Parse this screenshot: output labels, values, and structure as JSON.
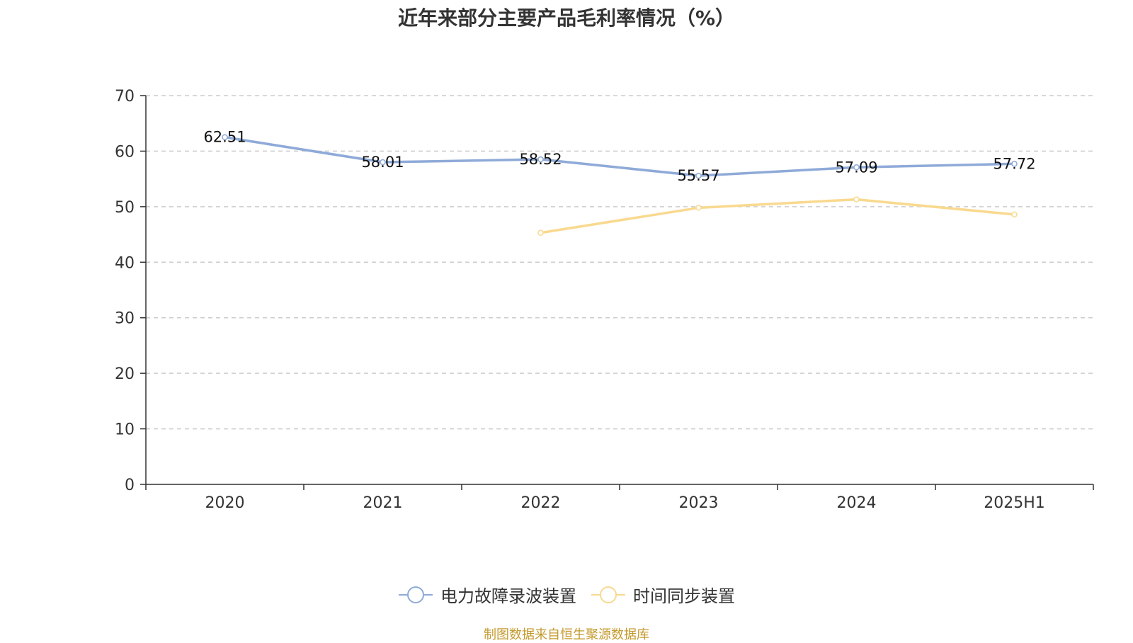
{
  "chart_data": {
    "type": "line",
    "title": "近年来部分主要产品毛利率情况（%）",
    "xlabel": "",
    "ylabel": "",
    "categories": [
      "2020",
      "2021",
      "2022",
      "2023",
      "2024",
      "2025H1"
    ],
    "ylim": [
      0,
      70
    ],
    "yticks": [
      0,
      10,
      20,
      30,
      40,
      50,
      60,
      70
    ],
    "grid": true,
    "legend_position": "bottom",
    "series": [
      {
        "name": "电力故障录波装置",
        "color": "#8eaad8",
        "values": [
          62.51,
          58.01,
          58.52,
          55.57,
          57.09,
          57.72
        ],
        "labels": [
          "62.51",
          "58.01",
          "58.52",
          "55.57",
          "57.09",
          "57.72"
        ]
      },
      {
        "name": "时间同步装置",
        "color": "#f9d98f",
        "values": [
          null,
          null,
          45.3,
          49.8,
          51.3,
          48.6
        ],
        "labels": [
          null,
          null,
          null,
          null,
          null,
          null
        ]
      }
    ]
  },
  "source": "制图数据来自恒生聚源数据库"
}
